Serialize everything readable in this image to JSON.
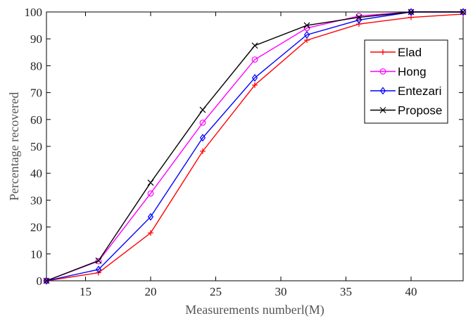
{
  "chart_data": {
    "type": "line",
    "title": "",
    "xlabel": "Measurements numberl(M)",
    "ylabel": "Percentage recovered",
    "xlim": [
      12,
      44
    ],
    "ylim": [
      0,
      100
    ],
    "xticks": [
      15,
      20,
      25,
      30,
      35,
      40
    ],
    "yticks": [
      0,
      10,
      20,
      30,
      40,
      50,
      60,
      70,
      80,
      90,
      100
    ],
    "grid": false,
    "legend_position": "right",
    "x": [
      12,
      16,
      20,
      24,
      28,
      32,
      36,
      40,
      44
    ],
    "series": [
      {
        "name": "Elad",
        "color": "#ff0000",
        "marker": "plus",
        "values": [
          0,
          3,
          17.8,
          48.2,
          72.8,
          89.5,
          95.5,
          98,
          99.2
        ]
      },
      {
        "name": "Hong",
        "color": "#ff00ff",
        "marker": "circle",
        "values": [
          0,
          7.3,
          32.5,
          58.8,
          82.3,
          94,
          98.5,
          100,
          100
        ]
      },
      {
        "name": "Entezari",
        "color": "#0000ff",
        "marker": "diamond",
        "values": [
          0,
          4.2,
          23.8,
          53.2,
          75.5,
          91.5,
          97,
          100,
          100
        ]
      },
      {
        "name": "Propose",
        "color": "#000000",
        "marker": "x",
        "values": [
          0,
          7.5,
          36.5,
          63.6,
          87.5,
          95,
          98,
          100,
          100
        ]
      }
    ]
  }
}
